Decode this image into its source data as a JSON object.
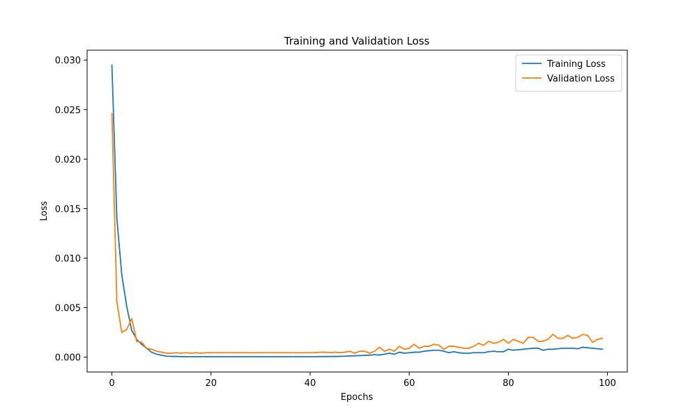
{
  "chart_data": {
    "type": "line",
    "title": "Training and Validation Loss",
    "xlabel": "Epochs",
    "ylabel": "Loss",
    "xlim": [
      -5,
      104
    ],
    "ylim": [
      -0.0015,
      0.031
    ],
    "xticks": [
      0,
      20,
      40,
      60,
      80,
      100
    ],
    "xtick_labels": [
      "0",
      "20",
      "40",
      "60",
      "80",
      "100"
    ],
    "yticks": [
      0.0,
      0.005,
      0.01,
      0.015,
      0.02,
      0.025,
      0.03
    ],
    "ytick_labels": [
      "0.000",
      "0.005",
      "0.010",
      "0.015",
      "0.020",
      "0.025",
      "0.030"
    ],
    "grid": false,
    "legend_position": "top-right",
    "x": [
      0,
      1,
      2,
      3,
      4,
      5,
      6,
      7,
      8,
      9,
      10,
      11,
      12,
      13,
      14,
      15,
      16,
      17,
      18,
      19,
      20,
      21,
      22,
      23,
      24,
      25,
      26,
      27,
      28,
      29,
      30,
      31,
      32,
      33,
      34,
      35,
      36,
      37,
      38,
      39,
      40,
      41,
      42,
      43,
      44,
      45,
      46,
      47,
      48,
      49,
      50,
      51,
      52,
      53,
      54,
      55,
      56,
      57,
      58,
      59,
      60,
      61,
      62,
      63,
      64,
      65,
      66,
      67,
      68,
      69,
      70,
      71,
      72,
      73,
      74,
      75,
      76,
      77,
      78,
      79,
      80,
      81,
      82,
      83,
      84,
      85,
      86,
      87,
      88,
      89,
      90,
      91,
      92,
      93,
      94,
      95,
      96,
      97,
      98,
      99
    ],
    "series": [
      {
        "name": "Training Loss",
        "color": "#1f77b4",
        "values": [
          0.0295,
          0.014,
          0.0083,
          0.0051,
          0.0027,
          0.0018,
          0.0013,
          0.0009,
          0.0005,
          0.0003,
          0.0002,
          0.0001,
          8e-05,
          7e-05,
          6e-05,
          5e-05,
          5e-05,
          5e-05,
          5e-05,
          5e-05,
          5e-05,
          5e-05,
          5e-05,
          5e-05,
          5e-05,
          5e-05,
          5e-05,
          5e-05,
          5e-05,
          5e-05,
          5e-05,
          5e-05,
          5e-05,
          5e-05,
          5e-05,
          5e-05,
          5e-05,
          5e-05,
          5e-05,
          5e-05,
          5e-05,
          5e-05,
          6e-05,
          6e-05,
          7e-05,
          7e-05,
          8e-05,
          0.0001,
          0.00012,
          0.00014,
          0.00016,
          0.00018,
          0.0002,
          0.00025,
          0.00022,
          0.0003,
          0.0004,
          0.0003,
          0.0005,
          0.0004,
          0.00045,
          0.0005,
          0.0005,
          0.0006,
          0.00065,
          0.0007,
          0.0007,
          0.0006,
          0.00045,
          0.00055,
          0.00045,
          0.0004,
          0.0004,
          0.00045,
          0.00045,
          0.00045,
          0.00055,
          0.0006,
          0.00055,
          0.00055,
          0.0008,
          0.0007,
          0.00075,
          0.0008,
          0.00085,
          0.0009,
          0.0009,
          0.0007,
          0.0008,
          0.0008,
          0.00085,
          0.0009,
          0.0009,
          0.0009,
          0.00085,
          0.001,
          0.00095,
          0.0009,
          0.00085,
          0.0008
        ]
      },
      {
        "name": "Validation Loss",
        "color": "#ff7f0e",
        "values": [
          0.0246,
          0.0056,
          0.0025,
          0.0028,
          0.0039,
          0.0016,
          0.0015,
          0.0009,
          0.0008,
          0.0006,
          0.0005,
          0.0004,
          0.0004,
          0.00045,
          0.0004,
          0.00045,
          0.0004,
          0.00045,
          0.0004,
          0.00045,
          0.00045,
          0.00045,
          0.00045,
          0.00045,
          0.00045,
          0.00045,
          0.00045,
          0.00045,
          0.00045,
          0.00045,
          0.00045,
          0.00045,
          0.00045,
          0.00045,
          0.00045,
          0.00045,
          0.00045,
          0.00045,
          0.00045,
          0.00045,
          0.00045,
          0.00045,
          0.0005,
          0.0005,
          0.00045,
          0.0005,
          0.00045,
          0.0005,
          0.0006,
          0.0004,
          0.0006,
          0.0006,
          0.0004,
          0.0006,
          0.001,
          0.0006,
          0.0008,
          0.0006,
          0.0011,
          0.0008,
          0.0009,
          0.0013,
          0.0009,
          0.0011,
          0.0011,
          0.0013,
          0.0012,
          0.0008,
          0.0011,
          0.0011,
          0.001,
          0.0009,
          0.0009,
          0.0011,
          0.0014,
          0.0012,
          0.0016,
          0.0014,
          0.0015,
          0.0018,
          0.0014,
          0.0018,
          0.0016,
          0.0014,
          0.002,
          0.002,
          0.0016,
          0.0016,
          0.0018,
          0.0023,
          0.0019,
          0.0019,
          0.0022,
          0.0019,
          0.002,
          0.0023,
          0.0022,
          0.0015,
          0.0018,
          0.0019
        ]
      }
    ]
  }
}
